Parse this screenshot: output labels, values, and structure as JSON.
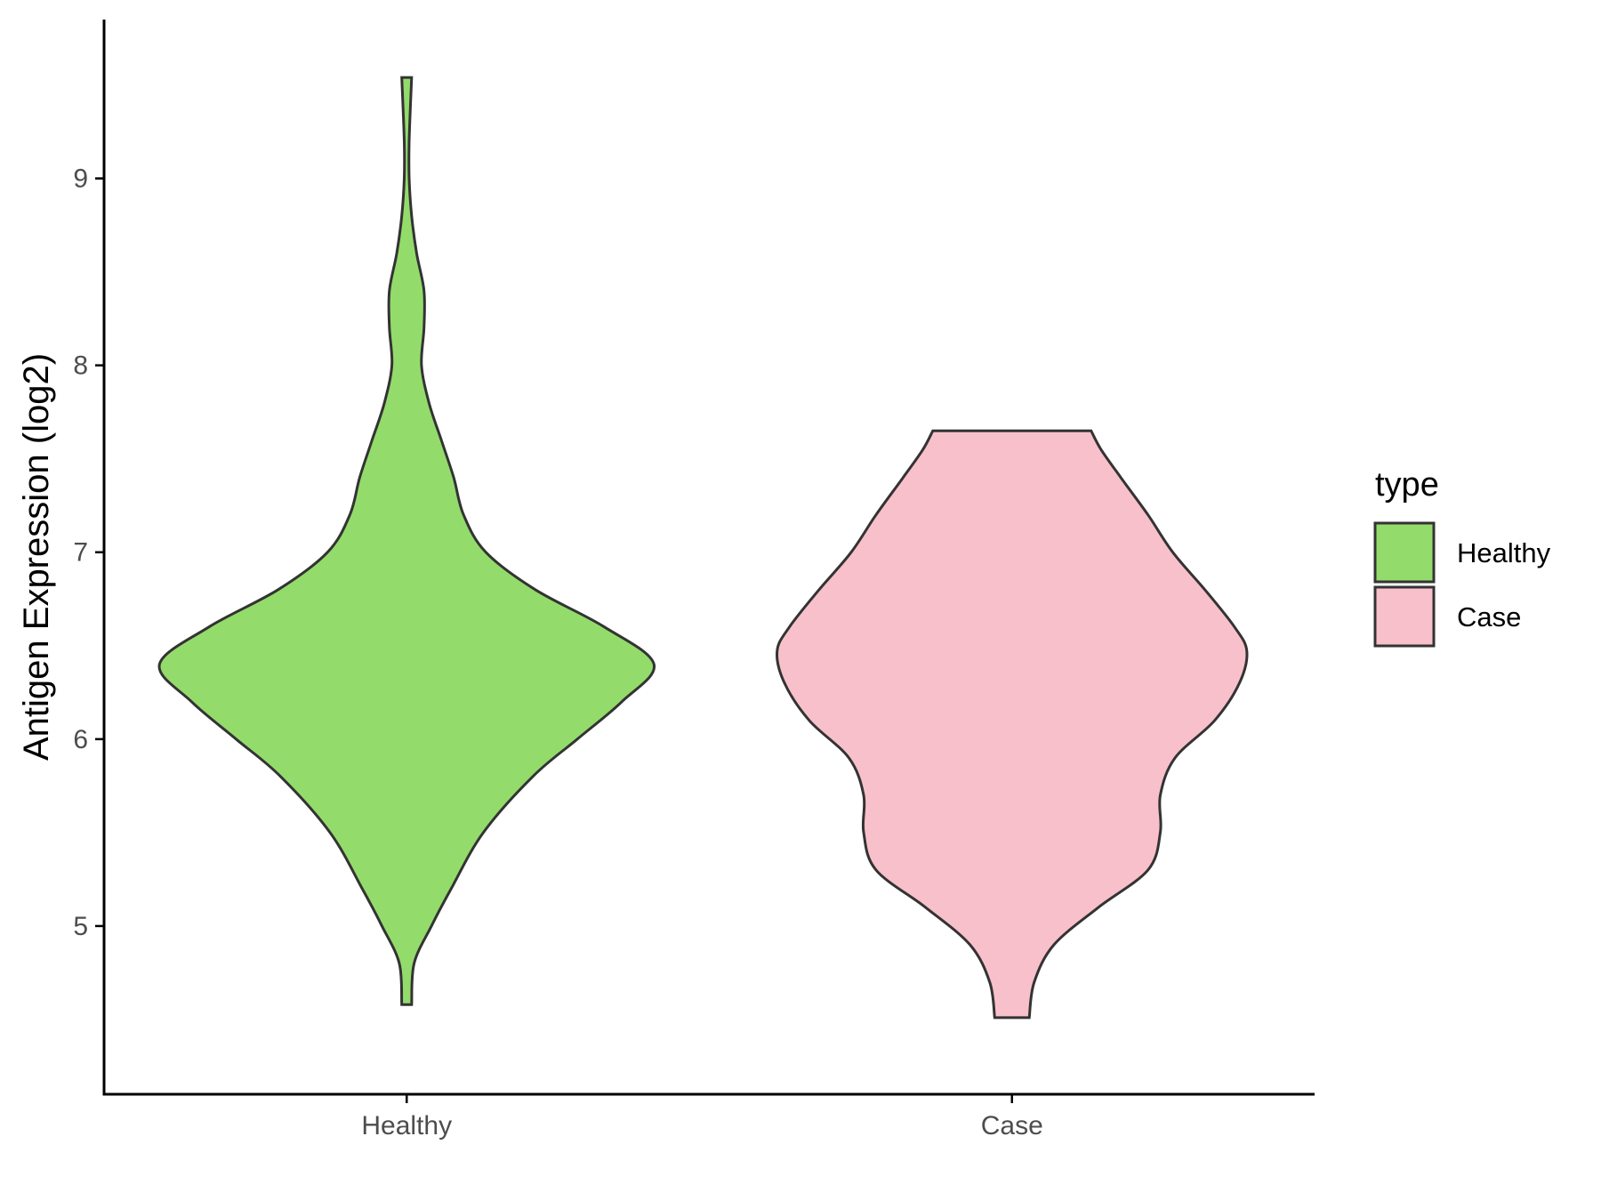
{
  "chart_data": {
    "type": "violin",
    "ylabel": "Antigen Expression (log2)",
    "xlabel": "",
    "categories": [
      "Healthy",
      "Case"
    ],
    "ylim": [
      4.1,
      9.85
    ],
    "yticks": [
      5,
      6,
      7,
      8,
      9
    ],
    "grid": false,
    "legend": {
      "title": "type",
      "placement": "right",
      "entries": [
        "Healthy",
        "Case"
      ]
    },
    "colors": {
      "Healthy": "#93dc6b",
      "Case": "#f8c0cb",
      "outline": "#333333"
    },
    "series": [
      {
        "category": "Healthy",
        "min": 4.58,
        "max": 9.54,
        "density_profile": [
          [
            4.58,
            0.02
          ],
          [
            4.8,
            0.03
          ],
          [
            5.0,
            0.1
          ],
          [
            5.2,
            0.18
          ],
          [
            5.5,
            0.31
          ],
          [
            5.8,
            0.51
          ],
          [
            6.0,
            0.69
          ],
          [
            6.2,
            0.87
          ],
          [
            6.4,
            1.0
          ],
          [
            6.6,
            0.8
          ],
          [
            6.8,
            0.52
          ],
          [
            7.0,
            0.32
          ],
          [
            7.2,
            0.23
          ],
          [
            7.4,
            0.19
          ],
          [
            7.6,
            0.14
          ],
          [
            7.8,
            0.09
          ],
          [
            8.0,
            0.06
          ],
          [
            8.2,
            0.07
          ],
          [
            8.4,
            0.07
          ],
          [
            8.6,
            0.04
          ],
          [
            8.8,
            0.02
          ],
          [
            9.0,
            0.01
          ],
          [
            9.2,
            0.01
          ],
          [
            9.54,
            0.02
          ]
        ]
      },
      {
        "category": "Case",
        "min": 4.51,
        "max": 7.65,
        "density_profile": [
          [
            4.51,
            0.07
          ],
          [
            4.7,
            0.09
          ],
          [
            4.9,
            0.17
          ],
          [
            5.1,
            0.35
          ],
          [
            5.3,
            0.55
          ],
          [
            5.5,
            0.6
          ],
          [
            5.7,
            0.6
          ],
          [
            5.9,
            0.66
          ],
          [
            6.1,
            0.82
          ],
          [
            6.3,
            0.92
          ],
          [
            6.47,
            0.95
          ],
          [
            6.6,
            0.9
          ],
          [
            6.8,
            0.78
          ],
          [
            7.0,
            0.65
          ],
          [
            7.2,
            0.55
          ],
          [
            7.4,
            0.44
          ],
          [
            7.55,
            0.36
          ],
          [
            7.65,
            0.32
          ]
        ]
      }
    ]
  }
}
